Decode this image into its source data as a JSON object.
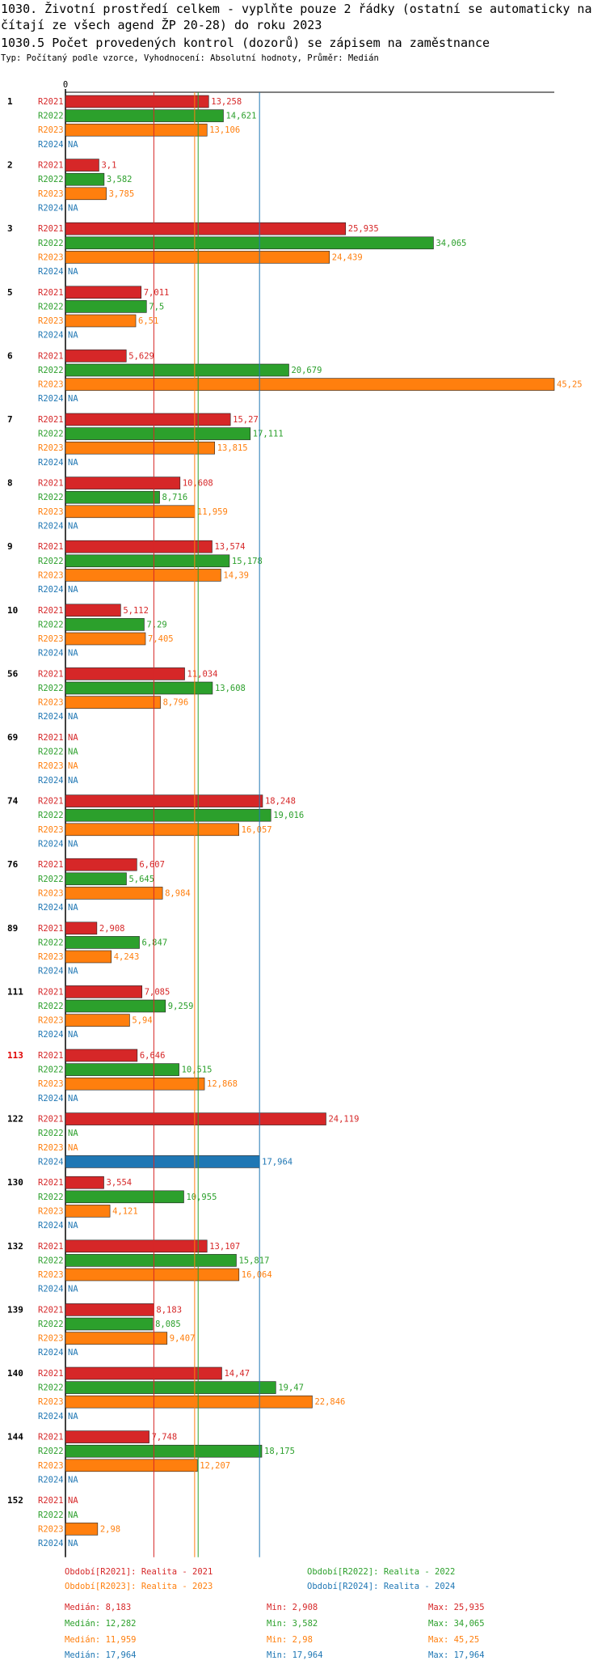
{
  "header": {
    "title_line1": "1030. Životní prostředí celkem - vyplňte pouze 2 řádky (ostatní se automaticky na",
    "title_line2": "čítají ze všech agend ŽP 20-28) do roku 2023",
    "title_line3": "1030.5 Počet provedených kontrol (dozorů) se zápisem na zaměstnance",
    "subtitle": "Typ: Počítaný podle vzorce, Vyhodnocení: Absolutní hodnoty, Průměr: Medián"
  },
  "chart_data": {
    "type": "bar",
    "orientation": "horizontal",
    "axis_zero_label": "0",
    "xlim": [
      0,
      45.25
    ],
    "series": [
      {
        "name": "R2021",
        "color": "#d62728"
      },
      {
        "name": "R2022",
        "color": "#2ca02c"
      },
      {
        "name": "R2023",
        "color": "#ff7f0e"
      },
      {
        "name": "R2024",
        "color": "#1f77b4"
      }
    ],
    "groups": [
      {
        "id": "1",
        "highlight": false,
        "values": [
          13.258,
          14.621,
          13.106,
          null
        ],
        "labels": [
          "13,258",
          "14,621",
          "13,106",
          "NA"
        ]
      },
      {
        "id": "2",
        "highlight": false,
        "values": [
          3.1,
          3.582,
          3.785,
          null
        ],
        "labels": [
          "3,1",
          "3,582",
          "3,785",
          "NA"
        ]
      },
      {
        "id": "3",
        "highlight": false,
        "values": [
          25.935,
          34.065,
          24.439,
          null
        ],
        "labels": [
          "25,935",
          "34,065",
          "24,439",
          "NA"
        ]
      },
      {
        "id": "5",
        "highlight": false,
        "values": [
          7.011,
          7.5,
          6.51,
          null
        ],
        "labels": [
          "7,011",
          "7,5",
          "6,51",
          "NA"
        ]
      },
      {
        "id": "6",
        "highlight": false,
        "values": [
          5.629,
          20.679,
          45.25,
          null
        ],
        "labels": [
          "5,629",
          "20,679",
          "45,25",
          "NA"
        ]
      },
      {
        "id": "7",
        "highlight": false,
        "values": [
          15.27,
          17.111,
          13.815,
          null
        ],
        "labels": [
          "15,27",
          "17,111",
          "13,815",
          "NA"
        ]
      },
      {
        "id": "8",
        "highlight": false,
        "values": [
          10.608,
          8.716,
          11.959,
          null
        ],
        "labels": [
          "10,608",
          "8,716",
          "11,959",
          "NA"
        ]
      },
      {
        "id": "9",
        "highlight": false,
        "values": [
          13.574,
          15.178,
          14.39,
          null
        ],
        "labels": [
          "13,574",
          "15,178",
          "14,39",
          "NA"
        ]
      },
      {
        "id": "10",
        "highlight": false,
        "values": [
          5.112,
          7.29,
          7.405,
          null
        ],
        "labels": [
          "5,112",
          "7,29",
          "7,405",
          "NA"
        ]
      },
      {
        "id": "56",
        "highlight": false,
        "values": [
          11.034,
          13.608,
          8.796,
          null
        ],
        "labels": [
          "11,034",
          "13,608",
          "8,796",
          "NA"
        ]
      },
      {
        "id": "69",
        "highlight": false,
        "values": [
          null,
          null,
          null,
          null
        ],
        "labels": [
          "NA",
          "NA",
          "NA",
          "NA"
        ]
      },
      {
        "id": "74",
        "highlight": false,
        "values": [
          18.248,
          19.016,
          16.057,
          null
        ],
        "labels": [
          "18,248",
          "19,016",
          "16,057",
          "NA"
        ]
      },
      {
        "id": "76",
        "highlight": false,
        "values": [
          6.607,
          5.645,
          8.984,
          null
        ],
        "labels": [
          "6,607",
          "5,645",
          "8,984",
          "NA"
        ]
      },
      {
        "id": "89",
        "highlight": false,
        "values": [
          2.908,
          6.847,
          4.243,
          null
        ],
        "labels": [
          "2,908",
          "6,847",
          "4,243",
          "NA"
        ]
      },
      {
        "id": "111",
        "highlight": false,
        "values": [
          7.085,
          9.259,
          5.94,
          null
        ],
        "labels": [
          "7,085",
          "9,259",
          "5,94",
          "NA"
        ]
      },
      {
        "id": "113",
        "highlight": true,
        "values": [
          6.646,
          10.515,
          12.868,
          null
        ],
        "labels": [
          "6,646",
          "10,515",
          "12,868",
          "NA"
        ]
      },
      {
        "id": "122",
        "highlight": false,
        "values": [
          24.119,
          null,
          null,
          17.964
        ],
        "labels": [
          "24,119",
          "NA",
          "NA",
          "17,964"
        ]
      },
      {
        "id": "130",
        "highlight": false,
        "values": [
          3.554,
          10.955,
          4.121,
          null
        ],
        "labels": [
          "3,554",
          "10,955",
          "4,121",
          "NA"
        ]
      },
      {
        "id": "132",
        "highlight": false,
        "values": [
          13.107,
          15.817,
          16.064,
          null
        ],
        "labels": [
          "13,107",
          "15,817",
          "16,064",
          "NA"
        ]
      },
      {
        "id": "139",
        "highlight": false,
        "values": [
          8.183,
          8.085,
          9.407,
          null
        ],
        "labels": [
          "8,183",
          "8,085",
          "9,407",
          "NA"
        ]
      },
      {
        "id": "140",
        "highlight": false,
        "values": [
          14.47,
          19.47,
          22.846,
          null
        ],
        "labels": [
          "14,47",
          "19,47",
          "22,846",
          "NA"
        ]
      },
      {
        "id": "144",
        "highlight": false,
        "values": [
          7.748,
          18.175,
          12.207,
          null
        ],
        "labels": [
          "7,748",
          "18,175",
          "12,207",
          "NA"
        ]
      },
      {
        "id": "152",
        "highlight": false,
        "values": [
          null,
          null,
          2.98,
          null
        ],
        "labels": [
          "NA",
          "NA",
          "2,98",
          "NA"
        ]
      }
    ],
    "median_lines": [
      8.183,
      12.282,
      11.959,
      17.964
    ]
  },
  "legend": {
    "r2021": "Období[R2021]: Realita - 2021",
    "r2022": "Období[R2022]: Realita - 2022",
    "r2023": "Období[R2023]: Realita - 2023",
    "r2024": "Období[R2024]: Realita - 2024"
  },
  "stats": [
    {
      "median": "Medián: 8,183",
      "min": "Min: 2,908",
      "max": "Max: 25,935"
    },
    {
      "median": "Medián: 12,282",
      "min": "Min: 3,582",
      "max": "Max: 34,065"
    },
    {
      "median": "Medián: 11,959",
      "min": "Min: 2,98",
      "max": "Max: 45,25"
    },
    {
      "median": "Medián: 17,964",
      "min": "Min: 17,964",
      "max": "Max: 17,964"
    }
  ]
}
